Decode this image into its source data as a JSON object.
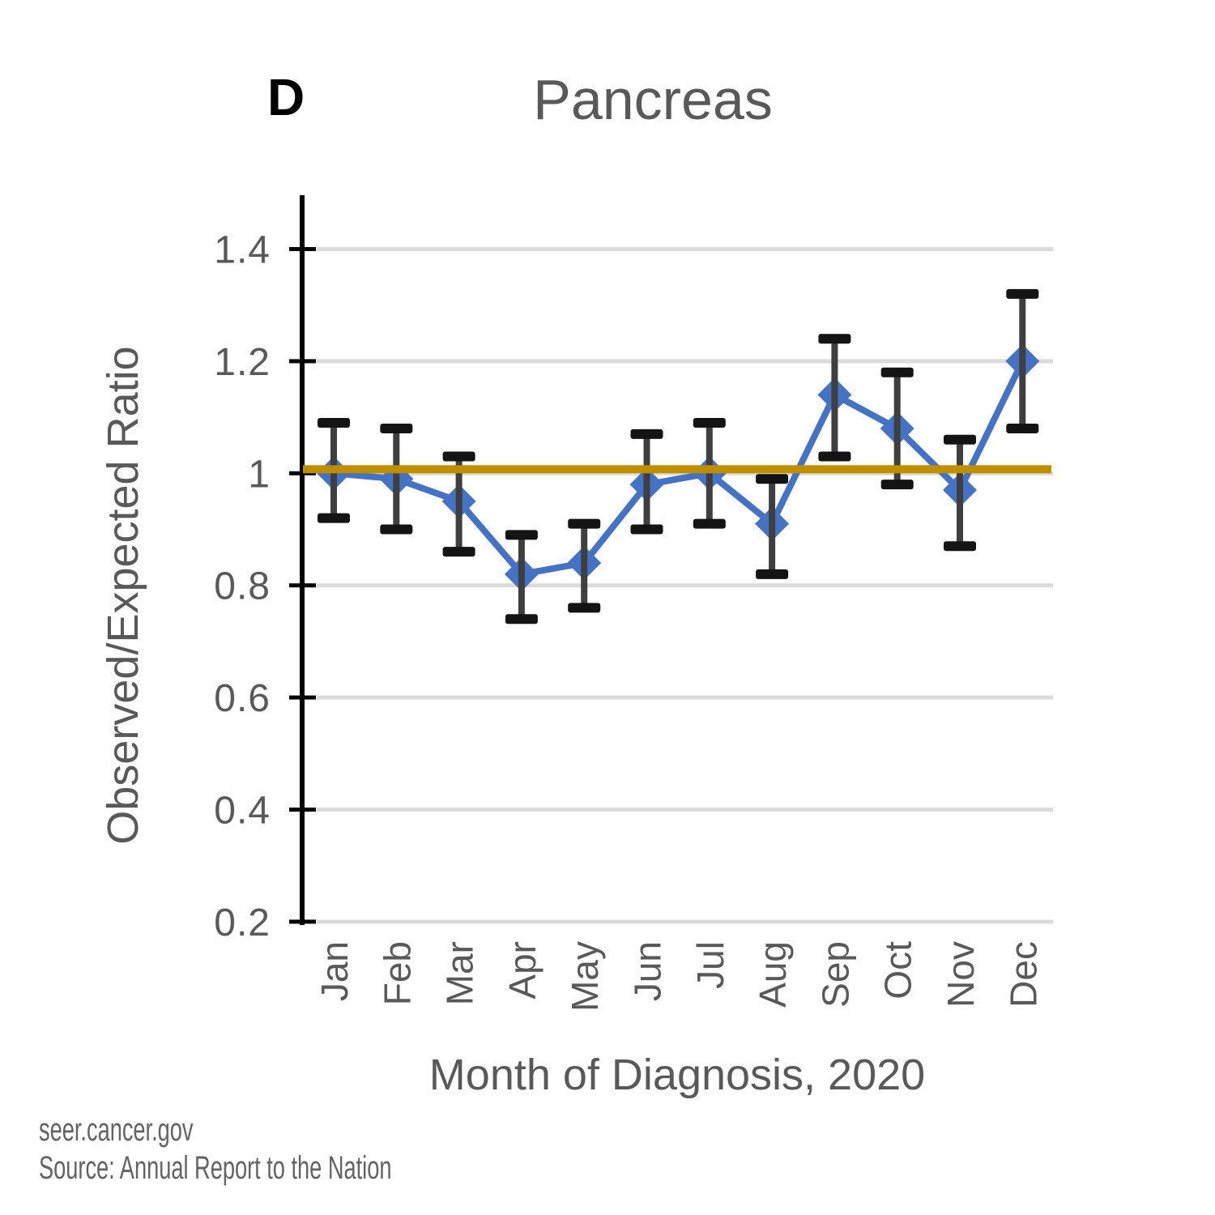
{
  "panel_label": "D",
  "title": "Pancreas",
  "footer": {
    "site": "seer.cancer.gov",
    "source": "Source: Annual Report to the Nation"
  },
  "colors": {
    "series": "#4472C4",
    "reference_line": "#BF8F00",
    "error_bar": "#3F3F3F",
    "error_cap": "#141414",
    "gridline": "#DBDBDB",
    "axis": "#000000",
    "text": "#595959",
    "footer_text": "#636363",
    "panel_label": "#000000"
  },
  "chart_data": {
    "type": "line",
    "title": "Pancreas",
    "xlabel": "Month of Diagnosis, 2020",
    "ylabel": "Observed/Expected Ratio",
    "ylim": [
      0.2,
      1.45
    ],
    "yticks": [
      1.4,
      1.2,
      1,
      0.8,
      0.6,
      0.4,
      0.2
    ],
    "ytick_labels": [
      "1.4",
      "1.2",
      "1",
      "0.8",
      "0.6",
      "0.4",
      "0.2"
    ],
    "grid": true,
    "legend_position": "none",
    "categories": [
      "Jan",
      "Feb",
      "Mar",
      "Apr",
      "May",
      "Jun",
      "Jul",
      "Aug",
      "Sep",
      "Oct",
      "Nov",
      "Dec"
    ],
    "series": [
      {
        "name": "Observed/Expected Ratio",
        "marker": "diamond",
        "values": [
          1.0,
          0.99,
          0.95,
          0.82,
          0.84,
          0.98,
          1.0,
          0.91,
          1.14,
          1.08,
          0.97,
          1.2
        ],
        "ci_low": [
          0.92,
          0.9,
          0.86,
          0.74,
          0.76,
          0.9,
          0.91,
          0.82,
          1.03,
          0.98,
          0.87,
          1.08
        ],
        "ci_high": [
          1.09,
          1.08,
          1.03,
          0.89,
          0.91,
          1.07,
          1.09,
          0.99,
          1.24,
          1.18,
          1.06,
          1.32
        ]
      }
    ],
    "reference_line": {
      "value": 1.0
    }
  }
}
